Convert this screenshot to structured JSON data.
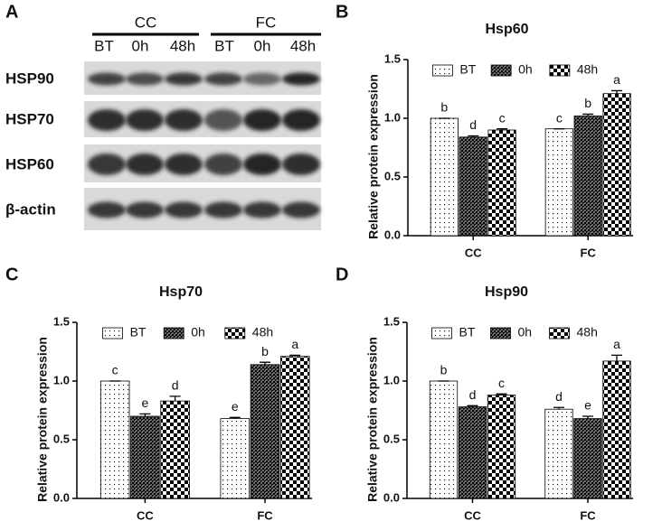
{
  "blot": {
    "panel": "A",
    "groups": [
      "CC",
      "FC"
    ],
    "lanes": [
      "BT",
      "0h",
      "48h",
      "BT",
      "0h",
      "48h"
    ],
    "rows": [
      "HSP90",
      "HSP70",
      "HSP60",
      "β-actin"
    ]
  },
  "chart_data": [
    {
      "type": "bar",
      "panel": "B",
      "title": "Hsp60",
      "y_label": "Relative protein expression",
      "categories": [
        "CC",
        "FC"
      ],
      "ylim": [
        0,
        1.5
      ],
      "yticks": [
        {
          "value": 0,
          "label": "0.0"
        },
        {
          "value": 0.5,
          "label": "0.5"
        },
        {
          "value": 1,
          "label": "1.0"
        },
        {
          "value": 1.5,
          "label": "1.5"
        }
      ],
      "series": [
        {
          "name": "BT",
          "color": "#000000",
          "pattern": "dots",
          "values": [
            1.0,
            0.91
          ],
          "errors": [
            0,
            0
          ],
          "letters": [
            "b",
            "c"
          ]
        },
        {
          "name": "0h",
          "color": "#000000",
          "pattern": "crosshatch",
          "values": [
            0.84,
            1.02
          ],
          "errors": [
            0.01,
            0.015
          ],
          "letters": [
            "d",
            "b"
          ]
        },
        {
          "name": "48h",
          "color": "#000000",
          "pattern": "checker",
          "values": [
            0.9,
            1.21
          ],
          "errors": [
            0.01,
            0.025
          ],
          "letters": [
            "c",
            "a"
          ]
        }
      ]
    },
    {
      "type": "bar",
      "panel": "C",
      "title": "Hsp70",
      "y_label": "Relative protein expression",
      "categories": [
        "CC",
        "FC"
      ],
      "ylim": [
        0,
        1.5
      ],
      "yticks": [
        {
          "value": 0,
          "label": "0.0"
        },
        {
          "value": 0.5,
          "label": "0.5"
        },
        {
          "value": 1,
          "label": "1.0"
        },
        {
          "value": 1.5,
          "label": "1.5"
        }
      ],
      "series": [
        {
          "name": "BT",
          "color": "#000000",
          "pattern": "dots",
          "values": [
            1.0,
            0.68
          ],
          "errors": [
            0,
            0.01
          ],
          "letters": [
            "c",
            "e"
          ]
        },
        {
          "name": "0h",
          "color": "#000000",
          "pattern": "crosshatch",
          "values": [
            0.7,
            1.14
          ],
          "errors": [
            0.02,
            0.02
          ],
          "letters": [
            "e",
            "b"
          ]
        },
        {
          "name": "48h",
          "color": "#000000",
          "pattern": "checker",
          "values": [
            0.83,
            1.21
          ],
          "errors": [
            0.04,
            0.01
          ],
          "letters": [
            "d",
            "a"
          ]
        }
      ]
    },
    {
      "type": "bar",
      "panel": "D",
      "title": "Hsp90",
      "y_label": "Relative protein expression",
      "categories": [
        "CC",
        "FC"
      ],
      "ylim": [
        0,
        1.5
      ],
      "yticks": [
        {
          "value": 0,
          "label": "0.0"
        },
        {
          "value": 0.5,
          "label": "0.5"
        },
        {
          "value": 1,
          "label": "1.0"
        },
        {
          "value": 1.5,
          "label": "1.5"
        }
      ],
      "series": [
        {
          "name": "BT",
          "color": "#000000",
          "pattern": "dots",
          "values": [
            1.0,
            0.76
          ],
          "errors": [
            0,
            0.015
          ],
          "letters": [
            "b",
            "d"
          ]
        },
        {
          "name": "0h",
          "color": "#000000",
          "pattern": "crosshatch",
          "values": [
            0.78,
            0.68
          ],
          "errors": [
            0.01,
            0.02
          ],
          "letters": [
            "d",
            "e"
          ]
        },
        {
          "name": "48h",
          "color": "#000000",
          "pattern": "checker",
          "values": [
            0.88,
            1.17
          ],
          "errors": [
            0.01,
            0.05
          ],
          "letters": [
            "c",
            "a"
          ]
        }
      ]
    }
  ]
}
